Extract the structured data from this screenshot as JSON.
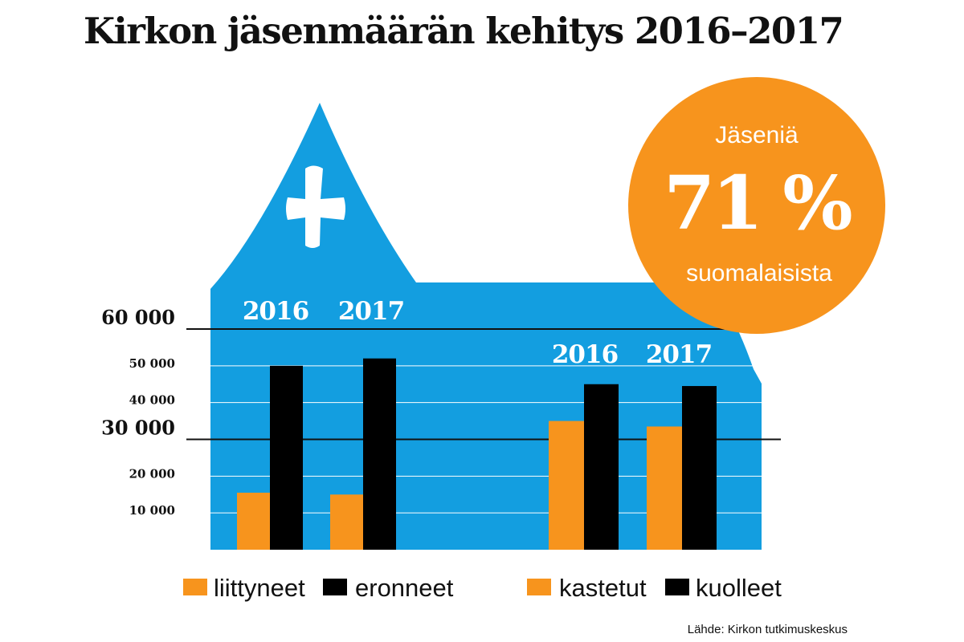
{
  "title": "Kirkon jäsenmäärän kehitys 2016–2017",
  "source": "Lähde: Kirkon tutkimuskeskus",
  "badge": {
    "top": "Jäseniä",
    "value": "71 %",
    "bottom": "suomalaisista"
  },
  "colors": {
    "church": "#139ee0",
    "orange": "#f7941d",
    "black": "#000000",
    "gridline": "#ffffff",
    "major_line": "#111111"
  },
  "icons": {
    "cross": "cross-icon"
  },
  "chart_data": {
    "type": "bar",
    "title": "Kirkon jäsenmäärän kehitys 2016–2017",
    "ylim": [
      0,
      60000
    ],
    "yticks": [
      {
        "value": 60000,
        "label": "60 000",
        "major": true
      },
      {
        "value": 50000,
        "label": "50 000",
        "major": false
      },
      {
        "value": 40000,
        "label": "40 000",
        "major": false
      },
      {
        "value": 30000,
        "label": "30 000",
        "major": true
      },
      {
        "value": 20000,
        "label": "20 000",
        "major": false
      },
      {
        "value": 10000,
        "label": "10 000",
        "major": false
      }
    ],
    "grid": true,
    "groups": [
      {
        "id": "left",
        "categories": [
          "2016",
          "2017"
        ],
        "series": [
          {
            "name": "liittyneet",
            "color": "#f7941d",
            "values": [
              15500,
              15000
            ]
          },
          {
            "name": "eronneet",
            "color": "#000000",
            "values": [
              50000,
              52000
            ]
          }
        ]
      },
      {
        "id": "right",
        "categories": [
          "2016",
          "2017"
        ],
        "series": [
          {
            "name": "kastetut",
            "color": "#f7941d",
            "values": [
              35000,
              33500
            ]
          },
          {
            "name": "kuolleet",
            "color": "#000000",
            "values": [
              45000,
              44500
            ]
          }
        ]
      }
    ],
    "legend": [
      "liittyneet",
      "eronneet",
      "kastetut",
      "kuolleet"
    ]
  }
}
